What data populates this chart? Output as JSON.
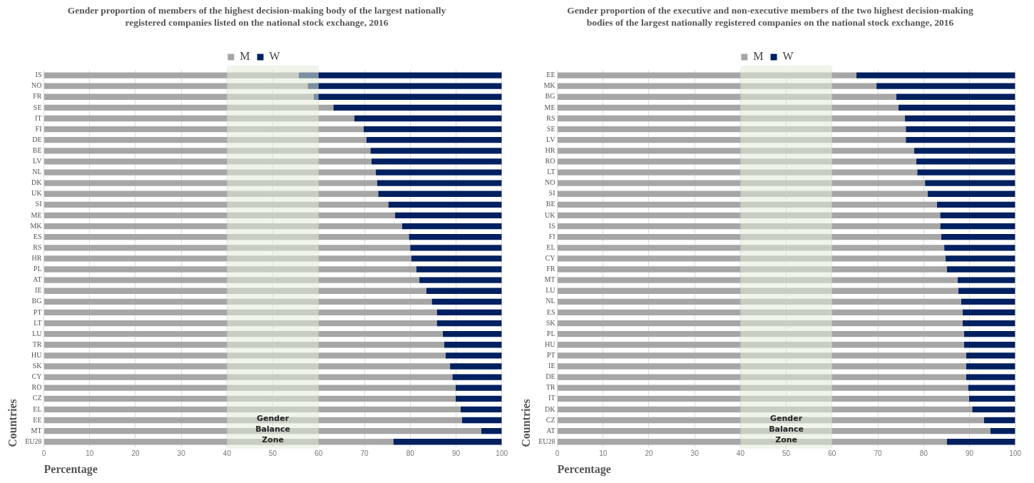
{
  "chart_data": [
    {
      "type": "bar",
      "title": "Gender proportion of members of the highest decision-making body of the largest nationally registered companies listed on the national stock exchange, 2016",
      "orientation": "horizontal",
      "stacked": true,
      "xlabel": "Percentage",
      "ylabel": "Countries",
      "categories": [
        "IS",
        "NO",
        "FR",
        "SE",
        "IT",
        "FI",
        "DE",
        "BE",
        "LV",
        "NL",
        "DK",
        "UK",
        "SI",
        "ME",
        "MK",
        "ES",
        "RS",
        "HR",
        "PL",
        "AT",
        "IE",
        "BG",
        "PT",
        "LT",
        "LU",
        "TR",
        "HU",
        "SK",
        "CY",
        "RO",
        "CZ",
        "EL",
        "EE",
        "MT",
        "EU28"
      ],
      "series": [
        {
          "name": "M",
          "color": "#a6a6a6",
          "values": [
            55.6,
            57.6,
            58.9,
            63.2,
            67.8,
            69.8,
            70.4,
            71.3,
            71.5,
            72.5,
            72.8,
            73.0,
            75.2,
            76.7,
            78.2,
            79.7,
            80.0,
            80.2,
            81.3,
            82.0,
            83.5,
            84.7,
            85.8,
            85.8,
            87.1,
            87.4,
            87.7,
            88.7,
            89.2,
            89.9,
            89.9,
            91.0,
            91.3,
            95.5,
            76.3
          ]
        },
        {
          "name": "W",
          "color": "#002060",
          "values": [
            44.4,
            42.4,
            41.1,
            36.8,
            32.2,
            30.2,
            29.6,
            28.7,
            28.5,
            27.5,
            27.2,
            27.0,
            24.8,
            23.3,
            21.8,
            20.3,
            20.0,
            19.8,
            18.7,
            18.0,
            16.5,
            15.3,
            14.2,
            14.2,
            12.9,
            12.6,
            12.3,
            11.3,
            10.8,
            10.1,
            10.1,
            9.0,
            8.7,
            4.5,
            23.7
          ]
        }
      ],
      "xlim": [
        0,
        100
      ],
      "xticks": [
        0,
        10,
        20,
        30,
        40,
        50,
        60,
        70,
        80,
        90,
        100
      ],
      "grid": "x",
      "legend": "top",
      "bands": [
        {
          "axis": "x",
          "from": 40,
          "to": 60,
          "label": "Gender Balance Zone",
          "color": "#e2ecd9"
        }
      ]
    },
    {
      "type": "bar",
      "title": "Gender proportion of the executive and non-executive members of the two highest decision-making bodies of the largest nationally registered companies on the national stock exchange, 2016",
      "orientation": "horizontal",
      "stacked": true,
      "xlabel": "Percentage",
      "ylabel": "Countries",
      "categories": [
        "EE",
        "MK",
        "BG",
        "ME",
        "RS",
        "SE",
        "LV",
        "HR",
        "RO",
        "LT",
        "NO",
        "SI",
        "BE",
        "UK",
        "IS",
        "FI",
        "EL",
        "CY",
        "FR",
        "MT",
        "LU",
        "NL",
        "ES",
        "SK",
        "PL",
        "HU",
        "PT",
        "IE",
        "DE",
        "TR",
        "IT",
        "DK",
        "CZ",
        "AT",
        "EU28"
      ],
      "series": [
        {
          "name": "M",
          "color": "#a6a6a6",
          "values": [
            65.3,
            69.7,
            74.0,
            74.5,
            75.9,
            76.1,
            76.1,
            77.9,
            78.4,
            78.6,
            80.3,
            80.9,
            82.9,
            83.6,
            83.6,
            83.8,
            84.5,
            84.8,
            85.1,
            87.4,
            87.6,
            88.2,
            88.5,
            88.5,
            88.8,
            88.8,
            89.3,
            89.3,
            89.3,
            89.7,
            89.9,
            90.6,
            93.2,
            94.6,
            85.1
          ]
        },
        {
          "name": "W",
          "color": "#002060",
          "values": [
            34.7,
            30.3,
            26.0,
            25.5,
            24.1,
            23.9,
            23.9,
            22.1,
            21.6,
            21.4,
            19.7,
            19.1,
            17.1,
            16.4,
            16.4,
            16.2,
            15.5,
            15.2,
            14.9,
            12.6,
            12.4,
            11.8,
            11.5,
            11.5,
            11.2,
            11.2,
            10.7,
            10.7,
            10.7,
            10.3,
            10.1,
            9.4,
            6.8,
            5.4,
            14.9
          ]
        }
      ],
      "xlim": [
        0,
        100
      ],
      "xticks": [
        0,
        10,
        20,
        30,
        40,
        50,
        60,
        70,
        80,
        90,
        100
      ],
      "grid": "x",
      "legend": "top",
      "bands": [
        {
          "axis": "x",
          "from": 40,
          "to": 60,
          "label": "Gender Balance Zone",
          "color": "#e2ecd9"
        }
      ]
    }
  ]
}
